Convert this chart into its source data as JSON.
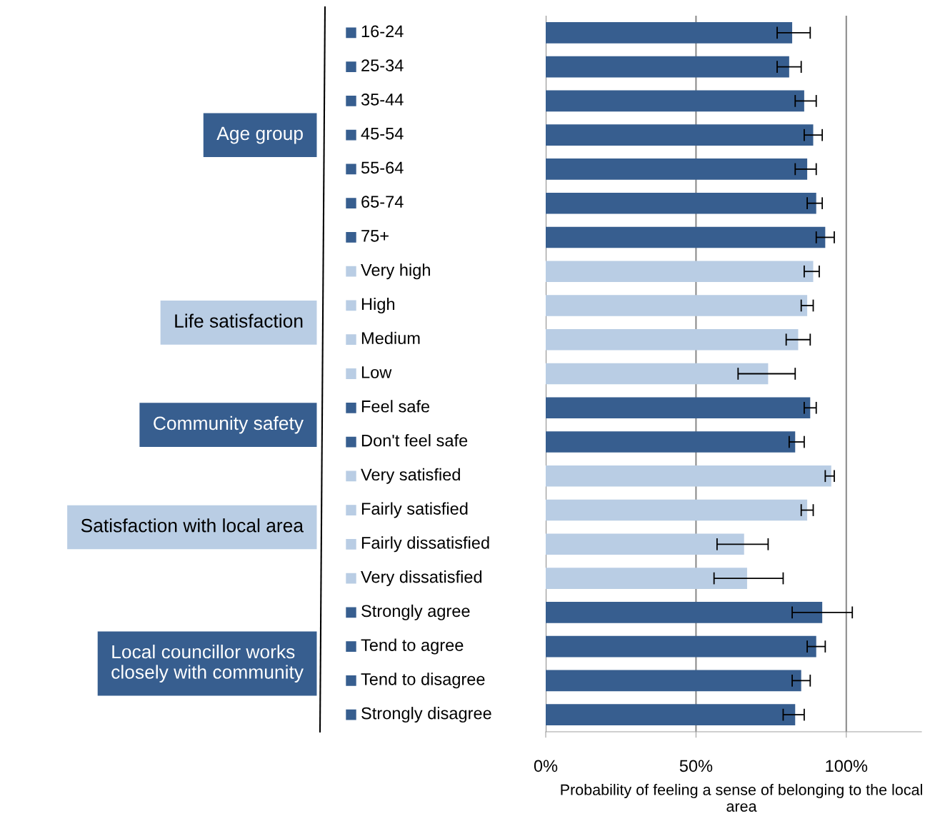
{
  "chart_data": {
    "type": "bar",
    "orientation": "horizontal",
    "categories": [
      "16-24",
      "25-34",
      "35-44",
      "45-54",
      "55-64",
      "65-74",
      "75+",
      "Very high",
      "High",
      "Medium",
      "Low",
      "Feel safe",
      "Don't feel safe",
      "Very satisfied",
      "Fairly satisfied",
      "Fairly dissatisfied",
      "Very dissatisfied",
      "Strongly agree",
      "Tend to agree",
      "Tend to disagree",
      "Strongly disagree"
    ],
    "values": [
      82,
      81,
      86,
      89,
      87,
      90,
      93,
      89,
      87,
      84,
      74,
      88,
      83,
      95,
      87,
      66,
      67,
      92,
      90,
      85,
      83
    ],
    "errors": [
      [
        77,
        88
      ],
      [
        77,
        85
      ],
      [
        83,
        90
      ],
      [
        86,
        92
      ],
      [
        83,
        90
      ],
      [
        87,
        92
      ],
      [
        90,
        96
      ],
      [
        86,
        91
      ],
      [
        85,
        89
      ],
      [
        80,
        88
      ],
      [
        64,
        83
      ],
      [
        86,
        90
      ],
      [
        81,
        86
      ],
      [
        93,
        96
      ],
      [
        85,
        89
      ],
      [
        57,
        74
      ],
      [
        56,
        79
      ],
      [
        82,
        102
      ],
      [
        87,
        93
      ],
      [
        82,
        88
      ],
      [
        79,
        86
      ]
    ],
    "colors": [
      "#375e8f",
      "#375e8f",
      "#375e8f",
      "#375e8f",
      "#375e8f",
      "#375e8f",
      "#375e8f",
      "#b9cde4",
      "#b9cde4",
      "#b9cde4",
      "#b9cde4",
      "#375e8f",
      "#375e8f",
      "#b9cde4",
      "#b9cde4",
      "#b9cde4",
      "#b9cde4",
      "#375e8f",
      "#375e8f",
      "#375e8f",
      "#375e8f"
    ],
    "xlim": [
      0,
      125
    ],
    "xticks": [
      {
        "value": 0,
        "label": "0%"
      },
      {
        "value": 50,
        "label": "50%"
      },
      {
        "value": 100,
        "label": "100%"
      }
    ],
    "xlabel": "Probability of feeling a sense of belonging to the local area",
    "grid": "x",
    "annotations": [
      "Age group",
      "Life satisfaction",
      "Community safety",
      "Satisfaction with local area",
      "Local councillor works closely with community"
    ]
  }
}
